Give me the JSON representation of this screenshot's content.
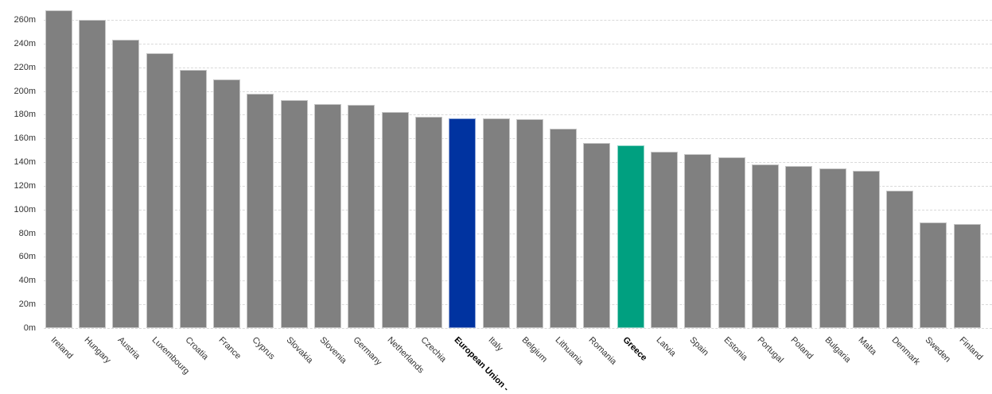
{
  "chart_data": {
    "type": "bar",
    "title": "",
    "xlabel": "",
    "ylabel": "",
    "categories": [
      "Ireland",
      "Hungary",
      "Austria",
      "Luxembourg",
      "Croatia",
      "France",
      "Cyprus",
      "Slovakia",
      "Slovenia",
      "Germany",
      "Netherlands",
      "Czechia",
      "European Union -",
      "Italy",
      "Belgium",
      "Lithuania",
      "Romania",
      "Greece",
      "Latvia",
      "Spain",
      "Estonia",
      "Portugal",
      "Poland",
      "Bulgaria",
      "Malta",
      "Denmark",
      "Sweden",
      "Finland"
    ],
    "values": [
      268,
      260,
      243,
      232,
      218,
      210,
      198,
      192,
      189,
      188,
      182,
      178,
      177,
      177,
      176,
      168,
      156,
      154,
      149,
      147,
      144,
      138,
      137,
      135,
      133,
      116,
      89,
      88
    ],
    "unit_suffix": "m",
    "y_ticks": [
      "0m",
      "20m",
      "40m",
      "60m",
      "80m",
      "100m",
      "120m",
      "140m",
      "160m",
      "180m",
      "200m",
      "220m",
      "240m",
      "260m"
    ],
    "y_tick_step": 20,
    "ylim": [
      0,
      277
    ],
    "grid": "horizontal-dashed-on",
    "legend": "none",
    "bar_color": "#808080",
    "grid_color": "#d9d9d9",
    "label_color": "#333333",
    "highlighted": [
      {
        "category": "European Union -",
        "color": "#0033a0",
        "bold_label": true
      },
      {
        "category": "Greece",
        "color": "#00a080",
        "bold_label": true
      }
    ]
  }
}
